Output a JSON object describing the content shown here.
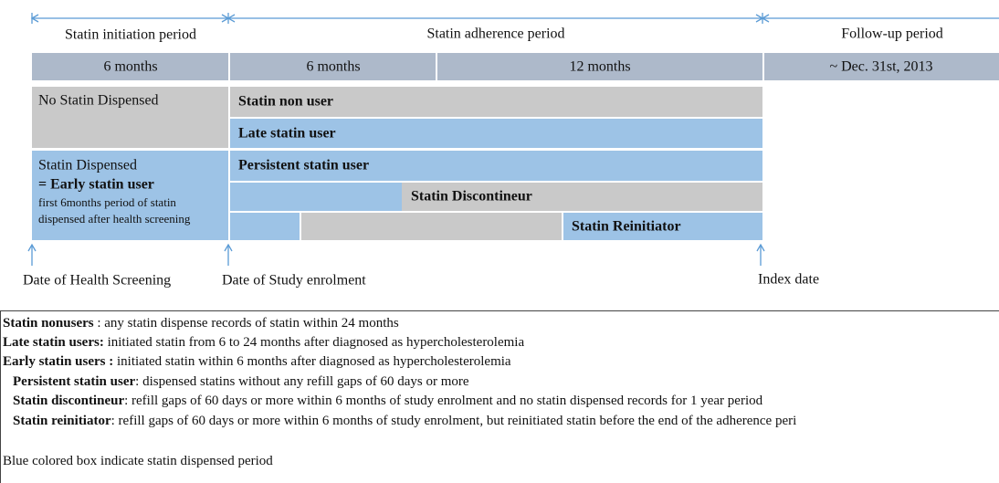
{
  "periods": [
    "Statin initiation period",
    "Statin adherence period",
    "Follow-up period"
  ],
  "durations": [
    "6 months",
    "6 months",
    "12 months",
    "~ Dec. 31st, 2013"
  ],
  "no_statin": "No Statin Dispensed",
  "dispensed": {
    "line1": "Statin Dispensed",
    "line2": "= Early statin user",
    "note1": "first 6months period of statin",
    "note2": "dispensed after health screening"
  },
  "groups": [
    "Statin non user",
    "Late statin user",
    "Persistent statin user",
    "Statin Discontineur",
    "Statin Reinitiator"
  ],
  "milestones": [
    "Date of Health Screening",
    "Date of Study enrolment",
    "Index date"
  ],
  "definitions": [
    {
      "term": "Statin nonusers",
      "text": " : any statin dispense records of statin within 24 months"
    },
    {
      "term": "Late statin users:",
      "text": " initiated statin from 6 to 24 months after diagnosed as hypercholesterolemia"
    },
    {
      "term": "Early statin users :",
      "text": " initiated statin within 6 months after diagnosed as hypercholesterolemia"
    },
    {
      "term": "Persistent statin user",
      "text": ": dispensed statins without any refill gaps of 60 days or more"
    },
    {
      "term": "Statin discontineur",
      "text": ": refill gaps of 60 days or more within 6 months of study enrolment and no statin dispensed records for 1 year period"
    },
    {
      "term": "Statin reinitiator",
      "text": ": refill gaps of 60 days or more within 6 months of study enrolment, but reinitiated statin before the end of the adherence peri"
    }
  ],
  "footnote": "Blue colored box indicate statin dispensed period"
}
